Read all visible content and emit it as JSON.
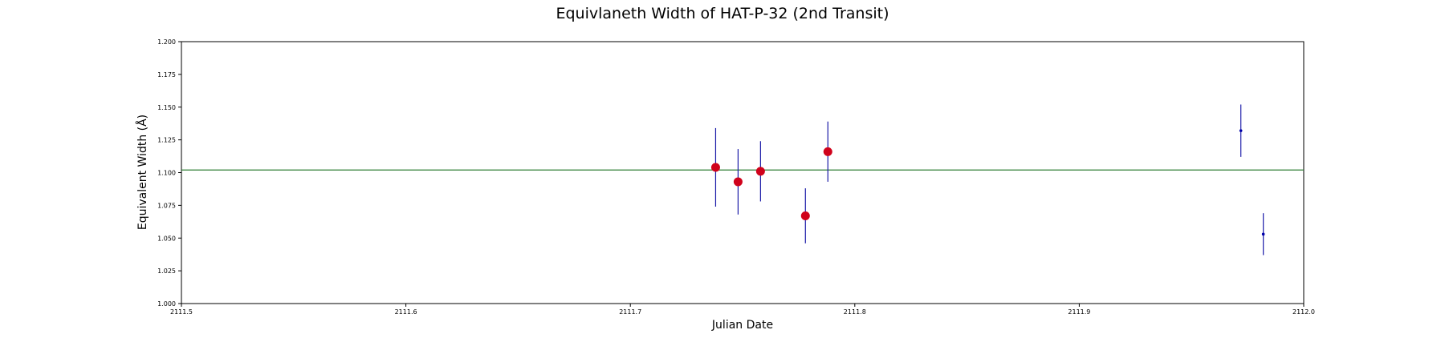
{
  "chart_data": {
    "type": "scatter",
    "title": "Equivlaneth Width of HAT-P-32 (2nd Transit)",
    "xlabel": "Julian Date",
    "ylabel": "Equivalent Width (Å)",
    "xlim": [
      2111.5,
      2112.0
    ],
    "ylim": [
      1.0,
      1.2
    ],
    "xticks": [
      "2111.5",
      "2111.6",
      "2111.7",
      "2111.8",
      "2111.9",
      "2112.0"
    ],
    "yticks": [
      "1.000",
      "1.025",
      "1.050",
      "1.075",
      "1.100",
      "1.125",
      "1.150",
      "1.175",
      "1.200"
    ],
    "grid": false,
    "reference_line": {
      "y": 1.102,
      "color": "#2e7d32"
    },
    "series": [
      {
        "marker_color": "#d0021b",
        "marker": "large-circle",
        "points": [
          {
            "x": 2111.738,
            "y": 1.104,
            "err": 0.03
          },
          {
            "x": 2111.748,
            "y": 1.093,
            "err": 0.025
          },
          {
            "x": 2111.758,
            "y": 1.101,
            "err": 0.023
          },
          {
            "x": 2111.778,
            "y": 1.067,
            "err": 0.021
          },
          {
            "x": 2111.788,
            "y": 1.116,
            "err": 0.023
          }
        ]
      },
      {
        "marker_color": "#0000aa",
        "marker": "small-dot",
        "points": [
          {
            "x": 2111.972,
            "y": 1.132,
            "err": 0.02
          },
          {
            "x": 2111.982,
            "y": 1.053,
            "err": 0.016
          }
        ]
      }
    ],
    "errorbar_color": "#1a1aa8"
  }
}
